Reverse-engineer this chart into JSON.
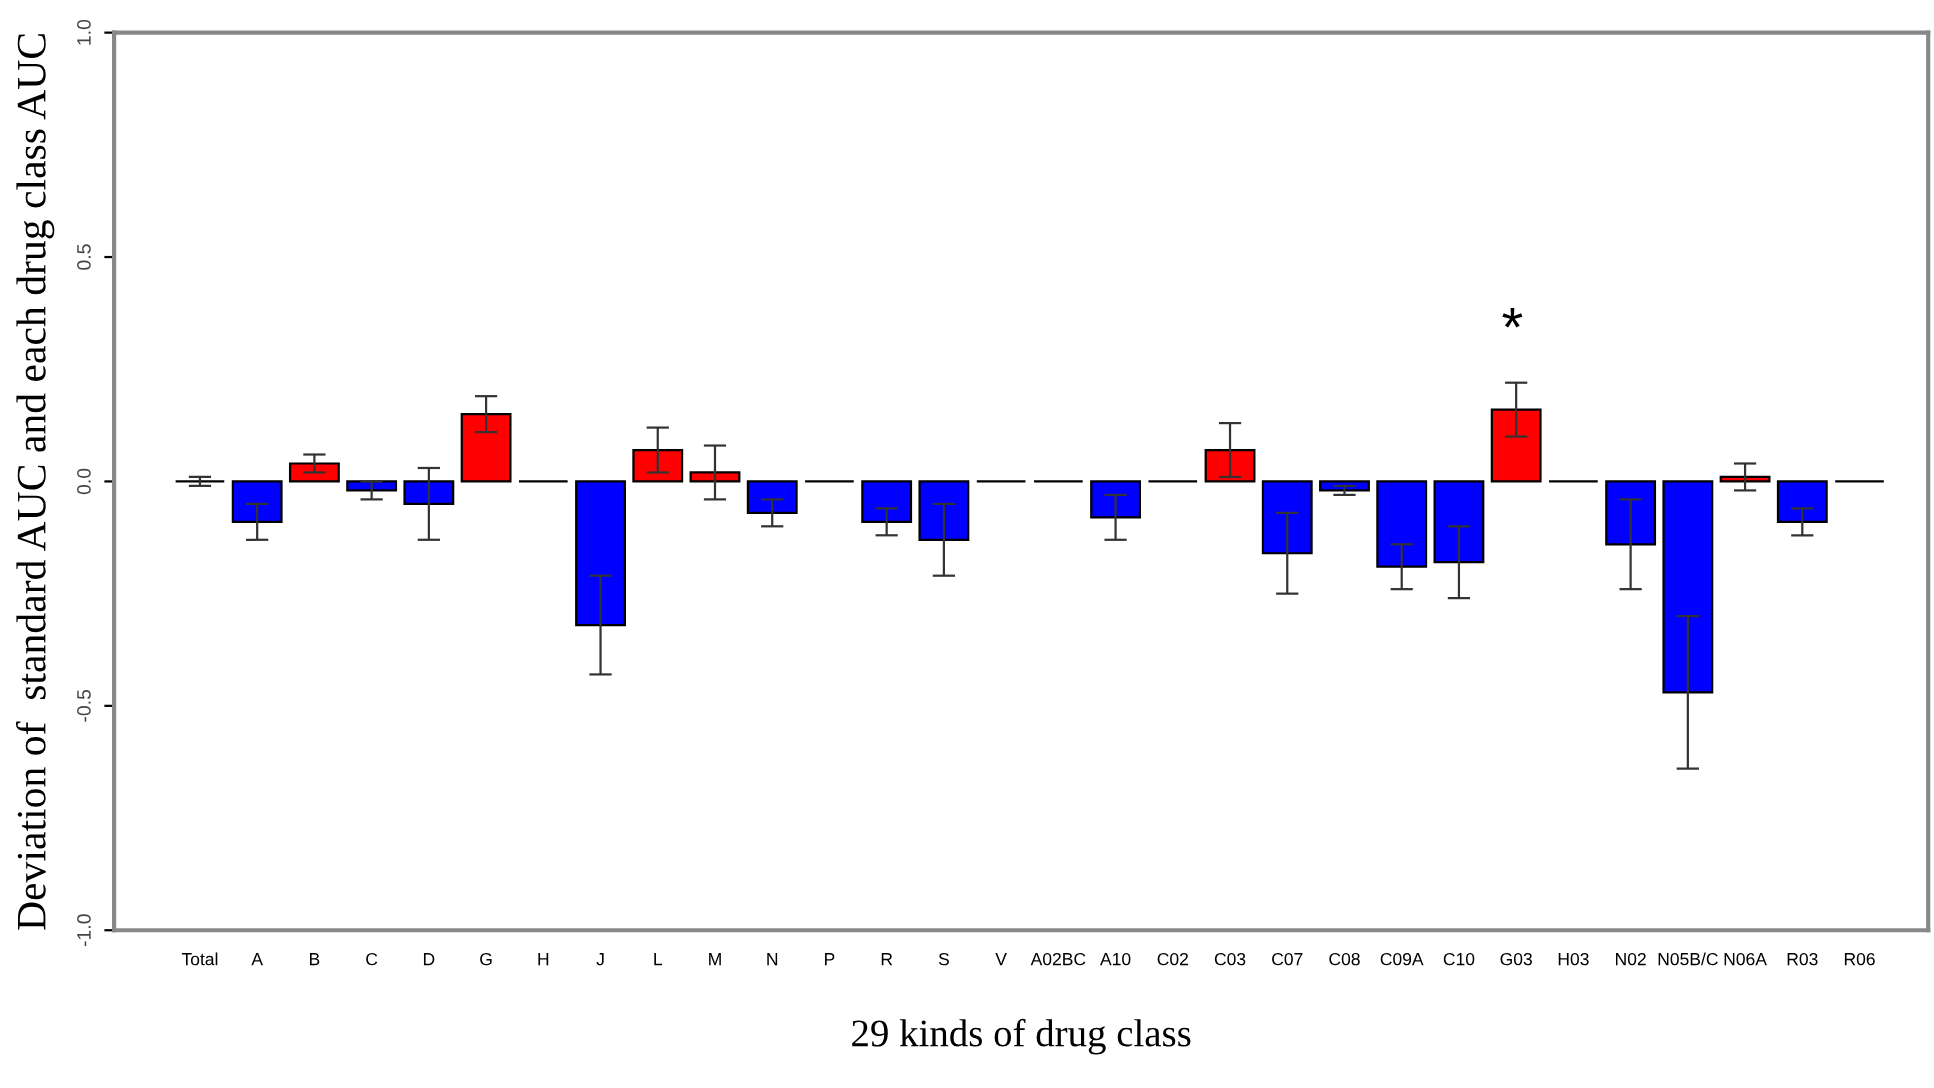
{
  "chart_data": {
    "type": "bar",
    "xlabel": "29 kinds of drug class",
    "ylabel": "Deviation of  standard AUC and each drug class AUC",
    "categories": [
      "Total",
      "A",
      "B",
      "C",
      "D",
      "G",
      "H",
      "J",
      "L",
      "M",
      "N",
      "P",
      "R",
      "S",
      "V",
      "A02BC",
      "A10",
      "C02",
      "C03",
      "C07",
      "C08",
      "C09A",
      "C10",
      "G03",
      "H03",
      "N02",
      "N05B/C",
      "N06A",
      "R03",
      "R06"
    ],
    "values": [
      0.0,
      -0.09,
      0.04,
      -0.02,
      -0.05,
      0.15,
      0,
      -0.32,
      0.07,
      0.02,
      -0.07,
      0,
      -0.09,
      -0.13,
      0,
      0,
      -0.08,
      0,
      0.07,
      -0.16,
      -0.02,
      -0.19,
      -0.18,
      0.16,
      0,
      -0.14,
      -0.47,
      0.01,
      -0.09,
      0
    ],
    "errors": [
      0.01,
      0.04,
      0.02,
      0.02,
      0.08,
      0.04,
      null,
      0.11,
      0.05,
      0.06,
      0.03,
      null,
      0.03,
      0.08,
      null,
      null,
      0.05,
      null,
      0.06,
      0.09,
      0.01,
      0.05,
      0.08,
      0.06,
      null,
      0.1,
      0.17,
      0.03,
      0.03,
      null
    ],
    "colors": [
      "#000000",
      "#0000ff",
      "#ff0000",
      "#0000ff",
      "#0000ff",
      "#ff0000",
      "#000000",
      "#0000ff",
      "#ff0000",
      "#ff0000",
      "#0000ff",
      "#000000",
      "#0000ff",
      "#0000ff",
      "#000000",
      "#000000",
      "#0000ff",
      "#000000",
      "#ff0000",
      "#0000ff",
      "#0000ff",
      "#0000ff",
      "#0000ff",
      "#ff0000",
      "#000000",
      "#0000ff",
      "#0000ff",
      "#ff0000",
      "#0000ff",
      "#000000"
    ],
    "ylim": [
      -1.0,
      1.0
    ],
    "yticks": [
      {
        "value": -1.0,
        "label": "-1.0"
      },
      {
        "value": -0.5,
        "label": "-0.5"
      },
      {
        "value": 0.0,
        "label": "0.0"
      },
      {
        "value": 0.5,
        "label": "0.5"
      },
      {
        "value": 1.0,
        "label": "1.0"
      }
    ],
    "annotations": [
      "*"
    ],
    "grid": false,
    "legend": false
  }
}
